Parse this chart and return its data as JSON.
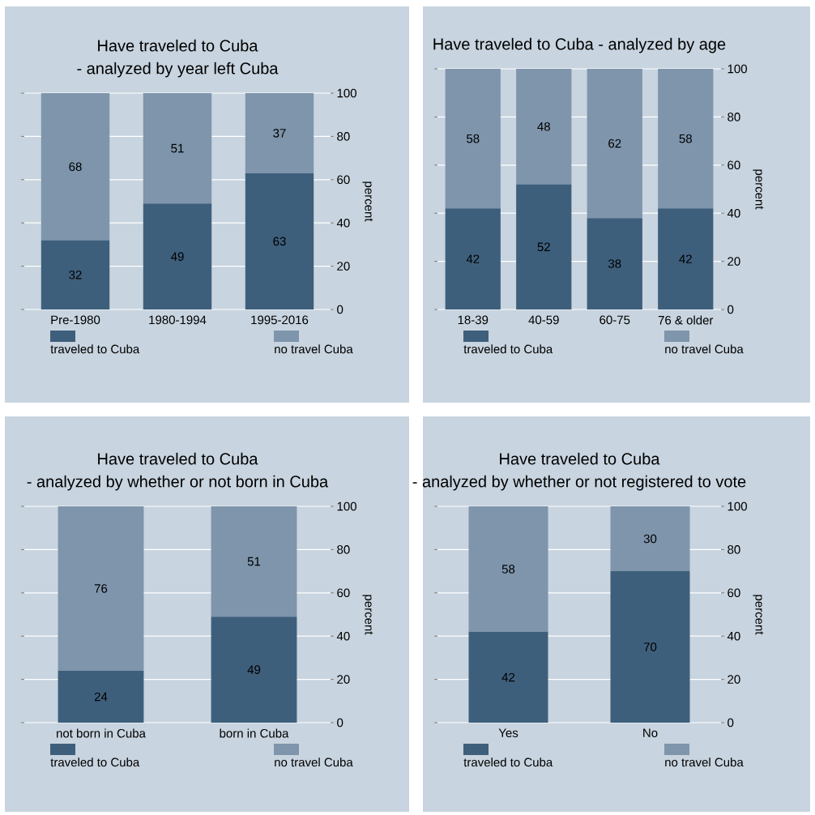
{
  "chart_data": [
    {
      "type": "bar",
      "stacked": true,
      "title": "Have traveled to Cuba",
      "subtitle": "- analyzed by year left Cuba",
      "ylabel": "percent",
      "categories": [
        "Pre-1980",
        "1980-1994",
        "1995-2016"
      ],
      "ylim": [
        0,
        100
      ],
      "yticks": [
        0,
        20,
        40,
        60,
        80,
        100
      ],
      "grid": "y",
      "legend": "bottom",
      "data_labels": true,
      "series": [
        {
          "name": "traveled to Cuba",
          "color": "#3e5f7c",
          "values": [
            32,
            49,
            63
          ]
        },
        {
          "name": "no travel Cuba",
          "color": "#7e95ac",
          "values": [
            68,
            51,
            37
          ]
        }
      ]
    },
    {
      "type": "bar",
      "stacked": true,
      "title": "Have traveled to Cuba - analyzed by age",
      "ylabel": "percent",
      "categories": [
        "18-39",
        "40-59",
        "60-75",
        "76 & older"
      ],
      "ylim": [
        0,
        100
      ],
      "yticks": [
        0,
        20,
        40,
        60,
        80,
        100
      ],
      "grid": "y",
      "legend": "bottom",
      "data_labels": true,
      "series": [
        {
          "name": "traveled to Cuba",
          "color": "#3e5f7c",
          "values": [
            42,
            52,
            38,
            42
          ]
        },
        {
          "name": "no travel Cuba",
          "color": "#7e95ac",
          "values": [
            58,
            48,
            62,
            58
          ]
        }
      ]
    },
    {
      "type": "bar",
      "stacked": true,
      "title": "Have traveled to Cuba",
      "subtitle": "- analyzed by whether or not born in Cuba",
      "ylabel": "percent",
      "categories": [
        "not born in Cuba",
        "born in Cuba"
      ],
      "ylim": [
        0,
        100
      ],
      "yticks": [
        0,
        20,
        40,
        60,
        80,
        100
      ],
      "grid": "y",
      "legend": "bottom",
      "data_labels": true,
      "series": [
        {
          "name": "traveled to Cuba",
          "color": "#3e5f7c",
          "values": [
            24,
            49
          ]
        },
        {
          "name": "no travel Cuba",
          "color": "#7e95ac",
          "values": [
            76,
            51
          ]
        }
      ]
    },
    {
      "type": "bar",
      "stacked": true,
      "title": "Have traveled to Cuba",
      "subtitle": "- analyzed by whether or not registered to vote",
      "ylabel": "percent",
      "categories": [
        "Yes",
        "No"
      ],
      "ylim": [
        0,
        100
      ],
      "yticks": [
        0,
        20,
        40,
        60,
        80,
        100
      ],
      "grid": "y",
      "legend": "bottom",
      "data_labels": true,
      "series": [
        {
          "name": "traveled to Cuba",
          "color": "#3e5f7c",
          "values": [
            42,
            70
          ]
        },
        {
          "name": "no travel Cuba",
          "color": "#7e95ac",
          "values": [
            58,
            30
          ]
        }
      ]
    }
  ]
}
